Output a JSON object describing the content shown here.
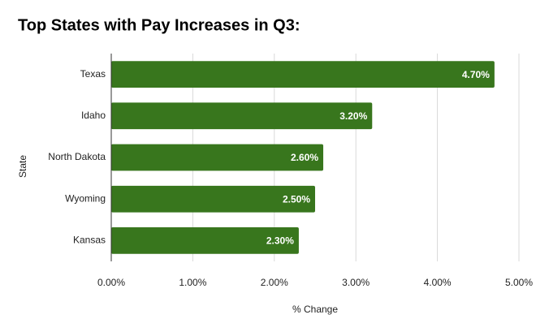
{
  "chart_data": {
    "type": "bar",
    "orientation": "horizontal",
    "title": "Top States with Pay Increases in Q3:",
    "x_label": "% Change",
    "y_label": "State",
    "categories": [
      "Texas",
      "Idaho",
      "North Dakota",
      "Wyoming",
      "Kansas"
    ],
    "values": [
      4.7,
      3.2,
      2.6,
      2.5,
      2.3
    ],
    "value_labels": [
      "4.70%",
      "3.20%",
      "2.60%",
      "2.50%",
      "2.30%"
    ],
    "color": "#38761d",
    "xlim": [
      0,
      5
    ],
    "xticks": [
      {
        "value": 0,
        "label": "0.00%"
      },
      {
        "value": 1,
        "label": "1.00%"
      },
      {
        "value": 2,
        "label": "2.00%"
      },
      {
        "value": 3,
        "label": "3.00%"
      },
      {
        "value": 4,
        "label": "4.00%"
      },
      {
        "value": 5,
        "label": "5.00%"
      }
    ],
    "grid": true
  }
}
